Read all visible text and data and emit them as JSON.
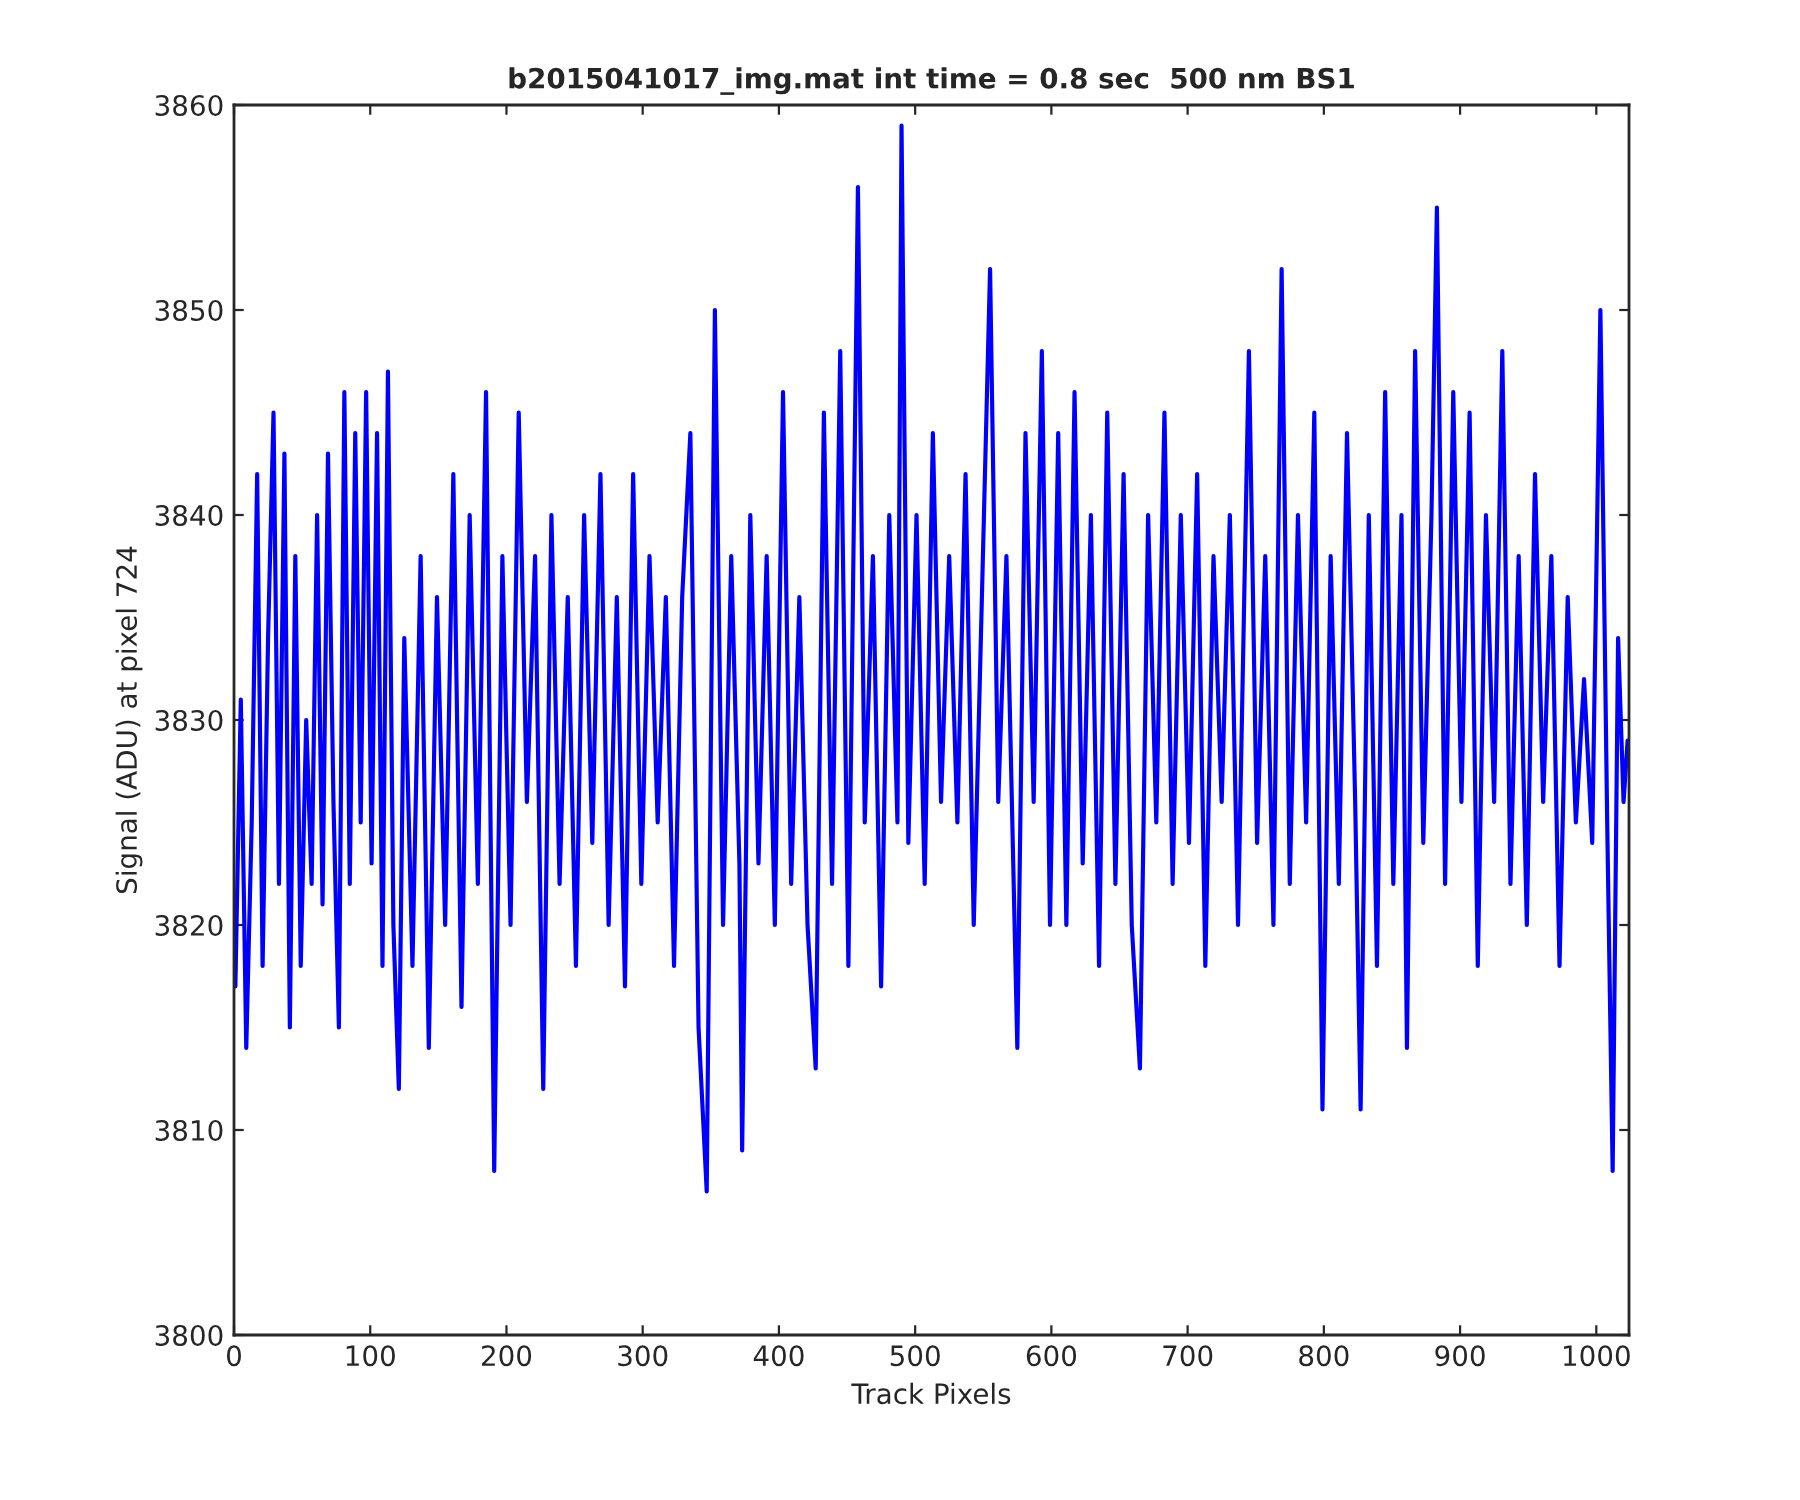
{
  "chart_data": {
    "type": "line",
    "title": "b2015041017_img.mat int time = 0.8 sec  500 nm BS1",
    "xlabel": "Track Pixels",
    "ylabel": "Signal (ADU) at pixel 724",
    "xlim": [
      0,
      1024
    ],
    "xticks": [
      0,
      100,
      200,
      300,
      400,
      500,
      600,
      700,
      800,
      900,
      1000
    ],
    "ylim": [
      3800,
      3860
    ],
    "yticks": [
      3800,
      3810,
      3820,
      3830,
      3840,
      3850,
      3860
    ],
    "grid": false,
    "legend": false,
    "series": [
      {
        "color": "#0000ff",
        "x": [
          1,
          5,
          9,
          13,
          17,
          21,
          25,
          29,
          33,
          37,
          41,
          45,
          49,
          53,
          57,
          61,
          65,
          69,
          73,
          77,
          81,
          85,
          89,
          93,
          97,
          101,
          105,
          109,
          113,
          117,
          121,
          125,
          131,
          137,
          143,
          149,
          155,
          161,
          167,
          173,
          179,
          185,
          191,
          197,
          203,
          209,
          215,
          221,
          227,
          233,
          239,
          245,
          251,
          257,
          263,
          269,
          275,
          281,
          287,
          293,
          299,
          305,
          311,
          317,
          323,
          329,
          335,
          341,
          347,
          353,
          359,
          365,
          371,
          373,
          379,
          385,
          391,
          397,
          403,
          409,
          415,
          421,
          427,
          433,
          439,
          445,
          451,
          458,
          463,
          469,
          475,
          481,
          487,
          490,
          495,
          501,
          507,
          513,
          519,
          525,
          531,
          537,
          543,
          549,
          555,
          561,
          567,
          575,
          581,
          587,
          593,
          599,
          605,
          611,
          617,
          623,
          629,
          635,
          641,
          647,
          653,
          659,
          665,
          671,
          677,
          683,
          689,
          695,
          701,
          707,
          713,
          719,
          725,
          731,
          737,
          745,
          751,
          757,
          763,
          769,
          775,
          781,
          787,
          793,
          799,
          805,
          811,
          817,
          823,
          827,
          833,
          839,
          845,
          851,
          857,
          861,
          867,
          873,
          879,
          883,
          889,
          895,
          901,
          907,
          913,
          919,
          925,
          931,
          937,
          943,
          949,
          955,
          961,
          967,
          973,
          979,
          985,
          991,
          997,
          1003,
          1008,
          1012,
          1016,
          1020,
          1023
        ],
        "values": [
          3817,
          3831,
          3814,
          3825,
          3842,
          3818,
          3834,
          3845,
          3822,
          3843,
          3815,
          3838,
          3818,
          3830,
          3822,
          3840,
          3821,
          3843,
          3826,
          3815,
          3846,
          3822,
          3844,
          3825,
          3846,
          3823,
          3844,
          3818,
          3847,
          3820,
          3812,
          3834,
          3818,
          3838,
          3814,
          3836,
          3820,
          3842,
          3816,
          3840,
          3822,
          3846,
          3808,
          3838,
          3820,
          3845,
          3826,
          3838,
          3812,
          3840,
          3822,
          3836,
          3818,
          3840,
          3824,
          3842,
          3820,
          3836,
          3817,
          3842,
          3822,
          3838,
          3825,
          3836,
          3818,
          3836,
          3844,
          3815,
          3807,
          3850,
          3820,
          3838,
          3823,
          3809,
          3840,
          3823,
          3838,
          3820,
          3846,
          3822,
          3836,
          3820,
          3813,
          3845,
          3822,
          3848,
          3818,
          3856,
          3825,
          3838,
          3817,
          3840,
          3825,
          3859,
          3824,
          3840,
          3822,
          3844,
          3826,
          3838,
          3825,
          3842,
          3820,
          3836,
          3852,
          3826,
          3838,
          3814,
          3844,
          3826,
          3848,
          3820,
          3844,
          3820,
          3846,
          3823,
          3840,
          3818,
          3845,
          3822,
          3842,
          3820,
          3813,
          3840,
          3825,
          3845,
          3822,
          3840,
          3824,
          3842,
          3818,
          3838,
          3826,
          3840,
          3820,
          3848,
          3824,
          3838,
          3820,
          3852,
          3822,
          3840,
          3825,
          3845,
          3811,
          3838,
          3822,
          3844,
          3826,
          3811,
          3840,
          3818,
          3846,
          3822,
          3840,
          3814,
          3848,
          3824,
          3840,
          3855,
          3822,
          3846,
          3826,
          3845,
          3818,
          3840,
          3826,
          3848,
          3822,
          3838,
          3820,
          3842,
          3826,
          3838,
          3818,
          3836,
          3825,
          3832,
          3824,
          3850,
          3825,
          3808,
          3834,
          3826,
          3829
        ]
      }
    ]
  }
}
